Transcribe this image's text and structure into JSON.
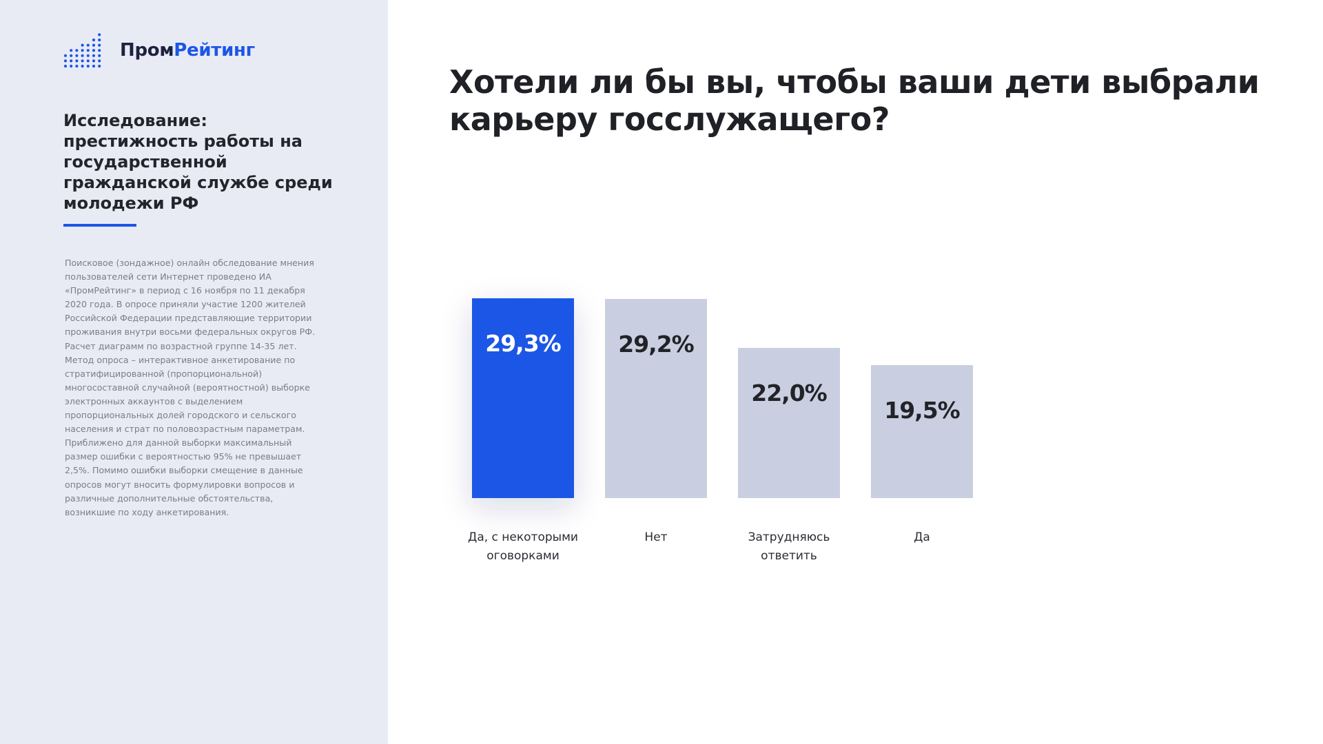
{
  "brand": {
    "name_part1": "Пром",
    "name_part2": "Рейтинг",
    "accent_color": "#1c56e6",
    "logo_icon": "bar-dots-icon"
  },
  "study": {
    "title": "Исследование: престижность работы на государственной гражданской службе среди молодежи РФ",
    "methodology": "Поисковое (зондажное) онлайн обследование мнения пользователей сети Интернет проведено ИА «ПромРейтинг» в период с 16 ноября по 11 декабря 2020 года. В опросе приняли участие 1200 жителей Российской Федерации представляющие территории проживания внутри восьми федеральных округов РФ. Расчет диаграмм по возрастной группе 14-35 лет. Метод опроса – интерактивное анкетирование по стратифицированной (пропорциональной) многосоставной случайной (вероятностной) выборке электронных аккаунтов с выделением пропорциональных долей городского и сельского населения и страт по половозрастным параметрам. Приближено для данной выборки максимальный размер ошибки с вероятностью 95% не превышает 2,5%. Помимо ошибки выборки смещение в данные опросов могут вносить формулировки вопросов и различные дополнительные обстоятельства, возникшие по ходу анкетирования."
  },
  "chart_data": {
    "type": "bar",
    "title": "Хотели ли бы вы, чтобы ваши дети выбрали карьеру госслужащего?",
    "categories": [
      [
        "Да, с некоторыми",
        "оговорками"
      ],
      [
        "Нет"
      ],
      [
        "Затрудняюсь",
        "ответить"
      ],
      [
        "Да"
      ]
    ],
    "values": [
      29.3,
      29.2,
      22.0,
      19.5
    ],
    "value_labels": [
      "29,3%",
      "29,2%",
      "22,0%",
      "19,5%"
    ],
    "unit": "%",
    "ylim": [
      0,
      29.3
    ],
    "highlight_index": 0,
    "colors": {
      "highlight": "#1c56e6",
      "default": "#c9cfe0",
      "highlight_text": "#ffffff",
      "default_text": "#222329"
    },
    "grid": false,
    "legend": "none"
  }
}
